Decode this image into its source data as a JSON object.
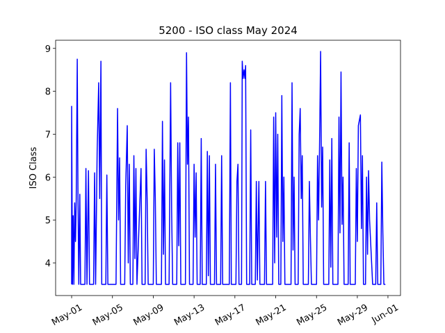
{
  "chart_data": {
    "type": "line",
    "title": "5200 - ISO class May 2024",
    "y_label": "ISO Class",
    "x": [
      1.0,
      1.0,
      1.08,
      1.15,
      1.22,
      1.3,
      1.38,
      1.45,
      1.55,
      1.62,
      1.7,
      1.8,
      1.88,
      2.3,
      2.4,
      2.5,
      2.65,
      2.75,
      3.15,
      3.25,
      3.35,
      3.5,
      3.65,
      3.75,
      3.87,
      3.95,
      4.35,
      4.45,
      4.55,
      5.35,
      5.5,
      5.6,
      5.7,
      5.8,
      6.2,
      6.3,
      6.45,
      6.55,
      6.65,
      6.75,
      7.0,
      7.1,
      7.2,
      7.3,
      7.4,
      7.8,
      7.9,
      8.2,
      8.3,
      8.4,
      8.5,
      9.0,
      9.1,
      9.2,
      9.3,
      9.8,
      9.9,
      10.0,
      10.1,
      10.2,
      10.55,
      10.7,
      10.8,
      10.9,
      11.3,
      11.4,
      11.5,
      11.6,
      11.7,
      12.15,
      12.26,
      12.35,
      12.45,
      12.55,
      12.9,
      13.0,
      13.1,
      13.2,
      13.3,
      13.6,
      13.7,
      13.8,
      14.2,
      14.3,
      14.4,
      14.5,
      14.6,
      15.0,
      15.1,
      15.2,
      15.6,
      15.7,
      15.8,
      16.45,
      16.56,
      16.65,
      17.1,
      17.2,
      17.3,
      17.4,
      17.65,
      17.72,
      17.8,
      17.9,
      17.98,
      18.05,
      18.15,
      18.45,
      18.55,
      18.65,
      19.0,
      19.1,
      19.2,
      19.35,
      19.45,
      19.9,
      20.0,
      20.1,
      20.7,
      20.8,
      20.9,
      21.0,
      21.1,
      21.2,
      21.3,
      21.5,
      21.6,
      21.7,
      21.8,
      21.9,
      22.5,
      22.6,
      22.7,
      22.8,
      22.9,
      23.2,
      23.3,
      23.4,
      23.5,
      23.6,
      23.7,
      24.2,
      24.3,
      24.4,
      24.5,
      25.0,
      25.1,
      25.2,
      25.3,
      25.4,
      25.5,
      25.6,
      25.7,
      26.2,
      26.3,
      26.4,
      26.5,
      26.6,
      27.1,
      27.2,
      27.3,
      27.4,
      27.5,
      27.6,
      27.7,
      28.1,
      28.2,
      28.3,
      28.8,
      28.9,
      29.0,
      29.1,
      29.3,
      29.4,
      29.5,
      29.6,
      29.8,
      29.9,
      30.0,
      30.1,
      30.2,
      30.5,
      30.8,
      30.9,
      31.0,
      31.3,
      31.4,
      31.5,
      31.6,
      31.75
    ],
    "values": [
      3.5,
      7.65,
      3.5,
      5.1,
      3.5,
      5.4,
      4.5,
      5.5,
      8.75,
      5.6,
      3.5,
      5.6,
      3.5,
      3.5,
      6.2,
      3.5,
      6.15,
      3.5,
      3.5,
      6.1,
      3.5,
      6.6,
      8.2,
      5.5,
      8.7,
      3.5,
      3.5,
      6.05,
      3.5,
      3.5,
      7.6,
      5.0,
      6.45,
      3.5,
      3.5,
      5.8,
      7.2,
      4.0,
      6.3,
      3.5,
      3.5,
      6.5,
      4.1,
      6.2,
      3.5,
      6.2,
      3.5,
      3.5,
      6.65,
      5.5,
      3.5,
      3.5,
      6.65,
      5.5,
      3.5,
      3.5,
      7.3,
      4.2,
      6.4,
      3.5,
      3.5,
      8.2,
      5.2,
      3.5,
      3.5,
      6.8,
      4.4,
      6.8,
      3.5,
      3.5,
      8.9,
      6.3,
      7.4,
      3.5,
      3.5,
      6.3,
      4.6,
      6.1,
      3.5,
      3.5,
      6.9,
      3.5,
      3.5,
      6.6,
      3.7,
      6.5,
      3.5,
      3.5,
      6.3,
      3.5,
      3.5,
      6.5,
      3.5,
      3.5,
      8.2,
      3.5,
      3.5,
      5.9,
      6.3,
      3.5,
      3.5,
      8.7,
      8.3,
      8.5,
      8.3,
      8.6,
      3.5,
      3.5,
      7.1,
      3.5,
      3.5,
      5.9,
      3.6,
      5.9,
      3.5,
      3.5,
      5.9,
      3.5,
      3.5,
      7.4,
      4.0,
      7.5,
      4.6,
      7.0,
      3.5,
      3.5,
      7.9,
      4.5,
      6.0,
      3.5,
      3.5,
      8.2,
      4.3,
      6.0,
      3.5,
      3.5,
      7.0,
      7.6,
      5.5,
      6.5,
      3.5,
      3.5,
      5.9,
      4.6,
      3.5,
      3.5,
      6.5,
      5.0,
      6.8,
      8.93,
      5.3,
      6.7,
      3.5,
      3.5,
      6.4,
      3.9,
      6.9,
      3.5,
      3.5,
      7.4,
      4.7,
      8.45,
      4.9,
      6.0,
      3.5,
      3.5,
      6.8,
      3.5,
      3.5,
      6.2,
      4.5,
      7.2,
      7.45,
      4.8,
      6.5,
      3.5,
      3.5,
      6.0,
      4.2,
      6.15,
      5.0,
      3.5,
      3.5,
      5.4,
      3.5,
      3.5,
      6.35,
      4.7,
      3.5,
      3.5
    ],
    "color": "#0000ff",
    "xlim": [
      -0.57,
      33.23
    ],
    "xticks": [
      {
        "value": 1,
        "label": "May-01"
      },
      {
        "value": 5,
        "label": "May-05"
      },
      {
        "value": 9,
        "label": "May-09"
      },
      {
        "value": 13,
        "label": "May-13"
      },
      {
        "value": 17,
        "label": "May-17"
      },
      {
        "value": 21,
        "label": "May-21"
      },
      {
        "value": 25,
        "label": "May-25"
      },
      {
        "value": 29,
        "label": "May-29"
      },
      {
        "value": 32,
        "label": "Jun-01"
      }
    ],
    "ylim": [
      3.24,
      9.19
    ],
    "yticks": [
      4,
      5,
      6,
      7,
      8,
      9
    ],
    "grid": false
  }
}
